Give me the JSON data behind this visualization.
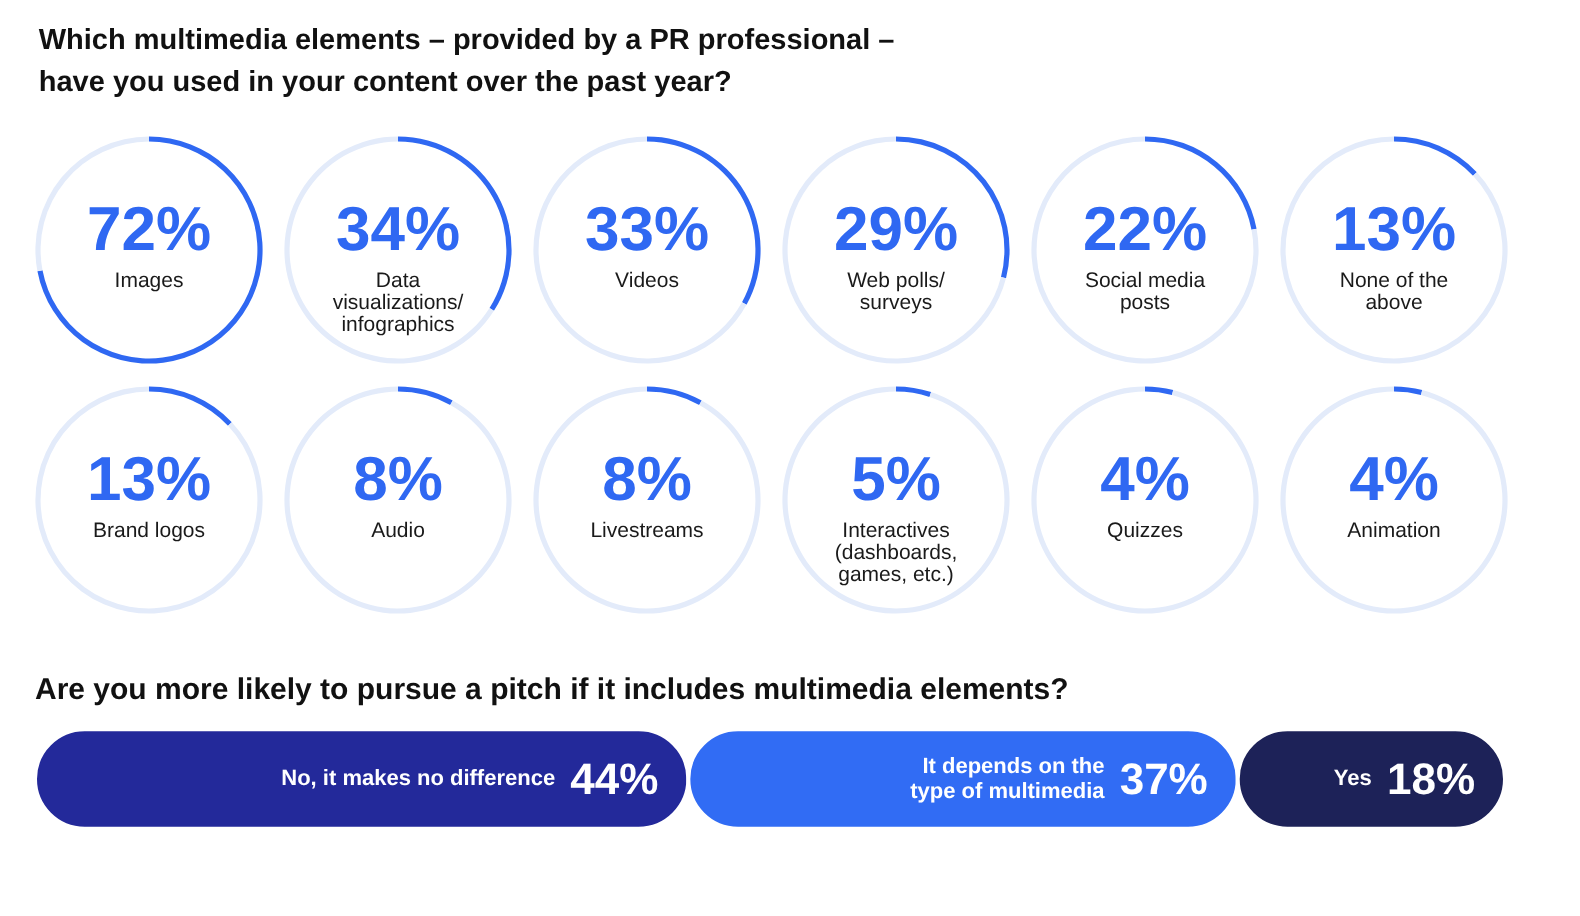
{
  "chart_data": [
    {
      "type": "other",
      "title": "Which multimedia elements – provided by a PR professional – have you used in your content over the past year?"
    },
    {
      "type": "donut",
      "title": "Images",
      "categories": [
        null,
        null
      ],
      "values": [
        72,
        28
      ],
      "value_labels": [
        "72%",
        null
      ],
      "colors": [
        "#2f68f2",
        "#e3ebfa"
      ]
    },
    {
      "type": "donut",
      "title": "Data visualizations/infographics",
      "categories": [
        null,
        null
      ],
      "values": [
        34,
        66
      ],
      "value_labels": [
        "34%",
        null
      ],
      "colors": [
        "#2f68f2",
        "#e3ebfa"
      ]
    },
    {
      "type": "donut",
      "title": "Videos",
      "categories": [
        null,
        null
      ],
      "values": [
        33,
        67
      ],
      "value_labels": [
        "33%",
        null
      ],
      "colors": [
        "#2f68f2",
        "#e3ebfa"
      ]
    },
    {
      "type": "donut",
      "title": "Web polls/surveys",
      "categories": [
        null,
        null
      ],
      "values": [
        29,
        71
      ],
      "value_labels": [
        "29%",
        null
      ],
      "colors": [
        "#2f68f2",
        "#e3ebfa"
      ]
    },
    {
      "type": "donut",
      "title": "Social media posts",
      "categories": [
        null,
        null
      ],
      "values": [
        22,
        78
      ],
      "value_labels": [
        "22%",
        null
      ],
      "colors": [
        "#2f68f2",
        "#e3ebfa"
      ]
    },
    {
      "type": "donut",
      "title": "None of the above",
      "categories": [
        null,
        null
      ],
      "values": [
        13,
        87
      ],
      "value_labels": [
        "13%",
        null
      ],
      "colors": [
        "#2f68f2",
        "#e3ebfa"
      ]
    },
    {
      "type": "donut",
      "title": "Brand logos",
      "categories": [
        null,
        null
      ],
      "values": [
        13,
        87
      ],
      "value_labels": [
        "13%",
        null
      ],
      "colors": [
        "#2f68f2",
        "#e3ebfa"
      ]
    },
    {
      "type": "donut",
      "title": "Audio",
      "categories": [
        null,
        null
      ],
      "values": [
        8,
        92
      ],
      "value_labels": [
        "8%",
        null
      ],
      "colors": [
        "#2f68f2",
        "#e3ebfa"
      ]
    },
    {
      "type": "donut",
      "title": "Livestreams",
      "categories": [
        null,
        null
      ],
      "values": [
        8,
        92
      ],
      "value_labels": [
        "8%",
        null
      ],
      "colors": [
        "#2f68f2",
        "#e3ebfa"
      ]
    },
    {
      "type": "donut",
      "title": "Interactives (dashboards, games, etc.)",
      "categories": [
        null,
        null
      ],
      "values": [
        5,
        95
      ],
      "value_labels": [
        "5%",
        null
      ],
      "colors": [
        "#2f68f2",
        "#e3ebfa"
      ]
    },
    {
      "type": "donut",
      "title": "Quizzes",
      "categories": [
        null,
        null
      ],
      "values": [
        4,
        96
      ],
      "value_labels": [
        "4%",
        null
      ],
      "colors": [
        "#2f68f2",
        "#e3ebfa"
      ]
    },
    {
      "type": "donut",
      "title": "Animation",
      "categories": [
        null,
        null
      ],
      "values": [
        4,
        96
      ],
      "value_labels": [
        "4%",
        null
      ],
      "colors": [
        "#2f68f2",
        "#e3ebfa"
      ]
    },
    {
      "type": "bar",
      "title": "Are you more likely to pursue a pitch if it includes multimedia elements?",
      "orientation": "horizontal",
      "stacked": true,
      "categories": [
        null
      ],
      "series": [
        {
          "name": "No, it makes no difference",
          "color": "#23299a",
          "values": [
            44
          ],
          "value_labels": [
            "44%"
          ]
        },
        {
          "name": "It depends on the type of multimedia",
          "color": "#316cf4",
          "values": [
            37
          ],
          "value_labels": [
            "37%"
          ]
        },
        {
          "name": "Yes",
          "color": "#1d2258",
          "values": [
            18
          ],
          "value_labels": [
            "18%"
          ]
        }
      ]
    }
  ]
}
